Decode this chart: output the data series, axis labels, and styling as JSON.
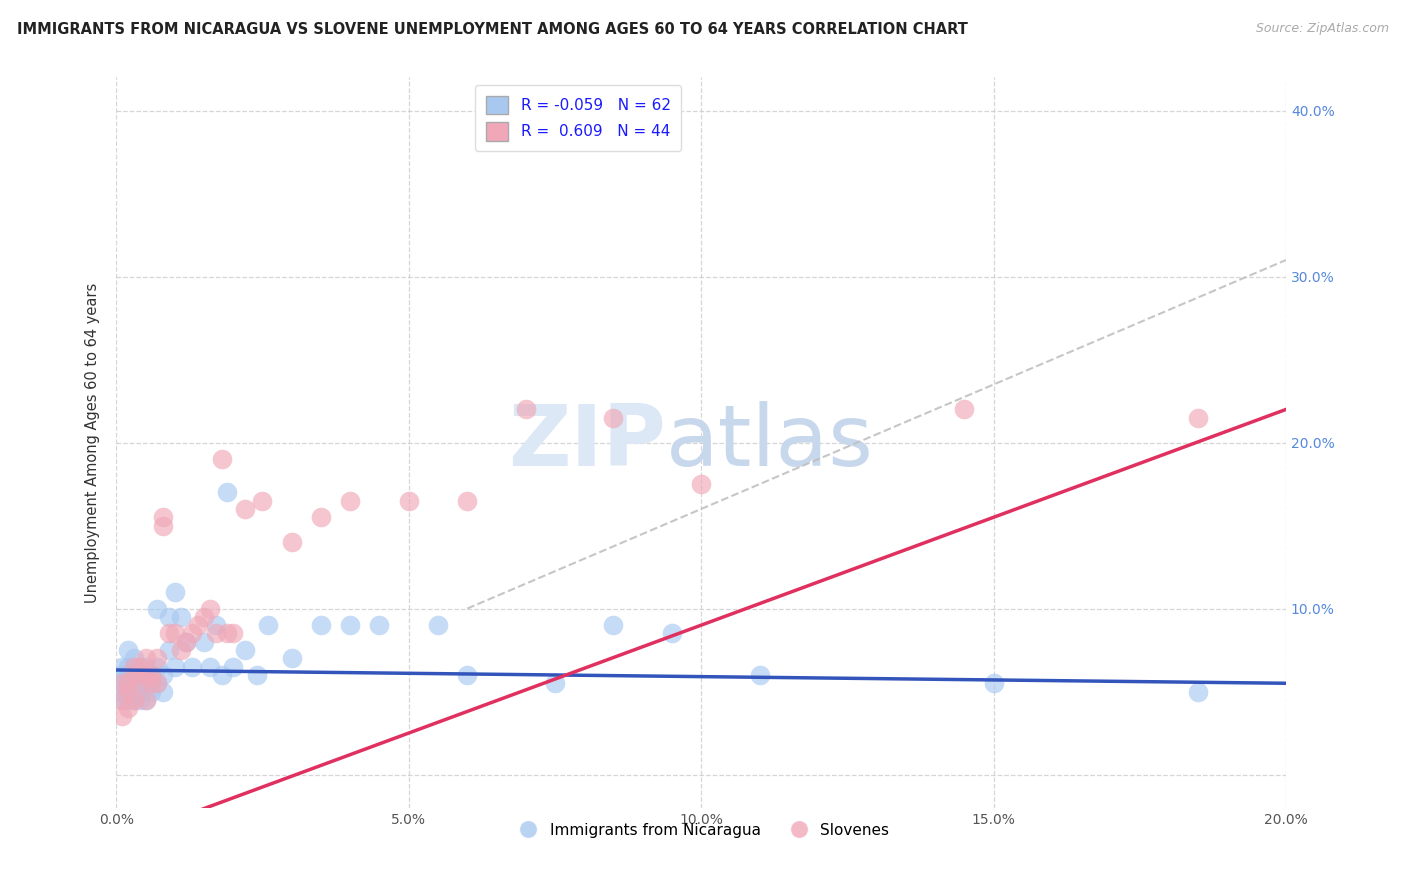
{
  "title": "IMMIGRANTS FROM NICARAGUA VS SLOVENE UNEMPLOYMENT AMONG AGES 60 TO 64 YEARS CORRELATION CHART",
  "source": "Source: ZipAtlas.com",
  "ylabel": "Unemployment Among Ages 60 to 64 years",
  "legend_label_1": "Immigrants from Nicaragua",
  "legend_label_2": "Slovenes",
  "R1": -0.059,
  "N1": 62,
  "R2": 0.609,
  "N2": 44,
  "xlim": [
    0.0,
    0.2
  ],
  "ylim": [
    -0.02,
    0.42
  ],
  "color_blue": "#a8c8f0",
  "color_pink": "#f0a8b8",
  "line_color_blue": "#3355bb",
  "line_color_pink": "#e03060",
  "dash_color": "#cccccc",
  "grid_color": "#cccccc",
  "watermark_color": "#dce8f5",
  "blue_x": [
    0.001,
    0.001,
    0.001,
    0.001,
    0.001,
    0.002,
    0.002,
    0.002,
    0.002,
    0.002,
    0.002,
    0.003,
    0.003,
    0.003,
    0.003,
    0.003,
    0.003,
    0.004,
    0.004,
    0.004,
    0.004,
    0.004,
    0.005,
    0.005,
    0.005,
    0.005,
    0.006,
    0.006,
    0.006,
    0.007,
    0.007,
    0.007,
    0.008,
    0.008,
    0.009,
    0.009,
    0.01,
    0.01,
    0.011,
    0.012,
    0.013,
    0.015,
    0.016,
    0.017,
    0.018,
    0.019,
    0.02,
    0.022,
    0.024,
    0.026,
    0.03,
    0.035,
    0.04,
    0.045,
    0.055,
    0.06,
    0.075,
    0.085,
    0.095,
    0.11,
    0.15,
    0.185
  ],
  "blue_y": [
    0.055,
    0.06,
    0.065,
    0.045,
    0.05,
    0.055,
    0.06,
    0.05,
    0.065,
    0.045,
    0.075,
    0.06,
    0.055,
    0.065,
    0.05,
    0.045,
    0.07,
    0.06,
    0.05,
    0.065,
    0.055,
    0.045,
    0.065,
    0.055,
    0.06,
    0.045,
    0.055,
    0.06,
    0.05,
    0.1,
    0.065,
    0.055,
    0.06,
    0.05,
    0.095,
    0.075,
    0.11,
    0.065,
    0.095,
    0.08,
    0.065,
    0.08,
    0.065,
    0.09,
    0.06,
    0.17,
    0.065,
    0.075,
    0.06,
    0.09,
    0.07,
    0.09,
    0.09,
    0.09,
    0.09,
    0.06,
    0.055,
    0.09,
    0.085,
    0.06,
    0.055,
    0.05
  ],
  "pink_x": [
    0.001,
    0.001,
    0.001,
    0.002,
    0.002,
    0.002,
    0.003,
    0.003,
    0.003,
    0.004,
    0.004,
    0.005,
    0.005,
    0.005,
    0.006,
    0.006,
    0.007,
    0.007,
    0.008,
    0.008,
    0.009,
    0.01,
    0.011,
    0.012,
    0.013,
    0.014,
    0.015,
    0.016,
    0.017,
    0.018,
    0.019,
    0.02,
    0.022,
    0.025,
    0.03,
    0.035,
    0.04,
    0.05,
    0.06,
    0.07,
    0.085,
    0.1,
    0.145,
    0.185
  ],
  "pink_y": [
    0.045,
    0.055,
    0.035,
    0.05,
    0.04,
    0.055,
    0.06,
    0.045,
    0.065,
    0.055,
    0.065,
    0.045,
    0.06,
    0.07,
    0.055,
    0.06,
    0.07,
    0.055,
    0.155,
    0.15,
    0.085,
    0.085,
    0.075,
    0.08,
    0.085,
    0.09,
    0.095,
    0.1,
    0.085,
    0.19,
    0.085,
    0.085,
    0.16,
    0.165,
    0.14,
    0.155,
    0.165,
    0.165,
    0.165,
    0.22,
    0.215,
    0.175,
    0.22,
    0.215
  ],
  "blue_trend": [
    -0.059,
    0.062
  ],
  "pink_trend": [
    1.35,
    -0.005
  ],
  "x_tick_labels": [
    "0.0%",
    "",
    "5.0%",
    "",
    "10.0%",
    "",
    "15.0%",
    "",
    "20.0%"
  ],
  "y_tick_labels_right": [
    "",
    "10.0%",
    "20.0%",
    "30.0%",
    "40.0%"
  ],
  "y_ticks": [
    0.0,
    0.1,
    0.2,
    0.3,
    0.4
  ],
  "x_ticks": [
    0.0,
    0.05,
    0.1,
    0.15,
    0.2
  ]
}
